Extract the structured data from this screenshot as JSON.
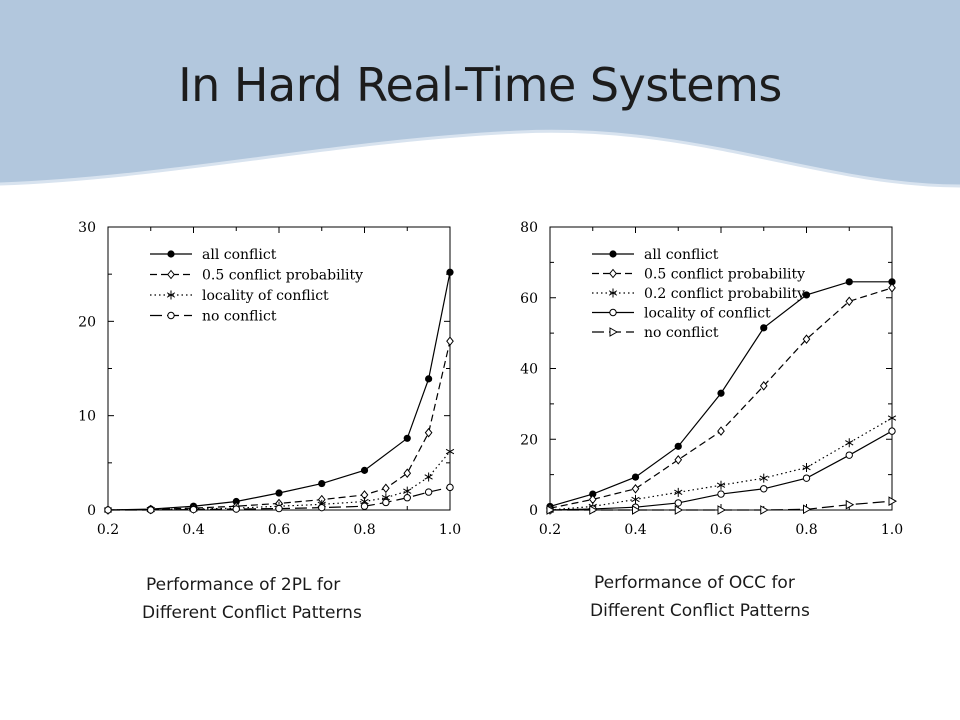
{
  "slide": {
    "title": "In Hard Real-Time Systems",
    "banner_color": "#b2c7dd"
  },
  "captions": {
    "left": [
      "Performance of 2PL for",
      "Different Conflict Patterns"
    ],
    "right": [
      "Performance of OCC for",
      "Different Conflict Patterns"
    ]
  },
  "chart_data": [
    {
      "type": "line",
      "title": "",
      "xlabel": "",
      "ylabel": "",
      "xlim": [
        0.2,
        1.0
      ],
      "ylim": [
        0,
        30
      ],
      "xticks": [
        0.2,
        0.4,
        0.6,
        0.8,
        1.0
      ],
      "xtick_labels": [
        "0.2",
        "0.4",
        "0.6",
        "0.8",
        "1.0"
      ],
      "yticks": [
        0,
        10,
        20,
        30
      ],
      "ytick_labels": [
        "0",
        "10",
        "20",
        "30"
      ],
      "grid": false,
      "legend": "top-left",
      "series": [
        {
          "name": "all conflict",
          "marker": "filled-circle",
          "dash": "solid",
          "x": [
            0.2,
            0.3,
            0.4,
            0.5,
            0.6,
            0.7,
            0.8,
            0.9,
            0.95,
            1.0
          ],
          "y": [
            0,
            0.1,
            0.4,
            0.9,
            1.8,
            2.8,
            4.2,
            7.6,
            13.9,
            25.2
          ]
        },
        {
          "name": "0.5 conflict probability",
          "marker": "diamond",
          "dash": "dashed",
          "x": [
            0.2,
            0.3,
            0.4,
            0.5,
            0.6,
            0.7,
            0.8,
            0.85,
            0.9,
            0.95,
            1.0
          ],
          "y": [
            0,
            0.05,
            0.2,
            0.4,
            0.7,
            1.1,
            1.6,
            2.3,
            3.9,
            8.2,
            17.9
          ]
        },
        {
          "name": "locality of conflict",
          "marker": "star",
          "dash": "dotted",
          "x": [
            0.2,
            0.3,
            0.4,
            0.5,
            0.6,
            0.7,
            0.8,
            0.85,
            0.9,
            0.95,
            1.0
          ],
          "y": [
            0,
            0.05,
            0.1,
            0.2,
            0.4,
            0.6,
            0.9,
            1.3,
            2.0,
            3.5,
            6.2
          ]
        },
        {
          "name": "no conflict",
          "marker": "open-circle",
          "dash": "long-dash",
          "x": [
            0.2,
            0.3,
            0.4,
            0.5,
            0.6,
            0.7,
            0.8,
            0.85,
            0.9,
            0.95,
            1.0
          ],
          "y": [
            0,
            0,
            0.05,
            0.1,
            0.15,
            0.25,
            0.4,
            0.8,
            1.3,
            1.9,
            2.4
          ]
        }
      ]
    },
    {
      "type": "line",
      "title": "",
      "xlabel": "",
      "ylabel": "",
      "xlim": [
        0.2,
        1.0
      ],
      "ylim": [
        0,
        80
      ],
      "xticks": [
        0.2,
        0.4,
        0.6,
        0.8,
        1.0
      ],
      "xtick_labels": [
        "0.2",
        "0.4",
        "0.6",
        "0.8",
        "1.0"
      ],
      "yticks": [
        0,
        20,
        40,
        60,
        80
      ],
      "ytick_labels": [
        "0",
        "20",
        "40",
        "60",
        "80"
      ],
      "grid": false,
      "legend": "top-left",
      "series": [
        {
          "name": "all conflict",
          "marker": "filled-circle",
          "dash": "solid",
          "x": [
            0.2,
            0.3,
            0.4,
            0.5,
            0.6,
            0.7,
            0.8,
            0.9,
            1.0
          ],
          "y": [
            1,
            4.5,
            9.3,
            18,
            33,
            51.5,
            60.8,
            64.5,
            64.5
          ]
        },
        {
          "name": "0.5 conflict probability",
          "marker": "diamond",
          "dash": "dashed",
          "x": [
            0.2,
            0.3,
            0.4,
            0.5,
            0.6,
            0.7,
            0.8,
            0.9,
            1.0
          ],
          "y": [
            0.5,
            3,
            6,
            14.2,
            22.3,
            35.1,
            48.3,
            59,
            62.8
          ]
        },
        {
          "name": "0.2 conflict probability",
          "marker": "star",
          "dash": "dotted",
          "x": [
            0.2,
            0.3,
            0.4,
            0.5,
            0.6,
            0.7,
            0.8,
            0.9,
            1.0
          ],
          "y": [
            0,
            1,
            3,
            5,
            7,
            9,
            12,
            19,
            26
          ]
        },
        {
          "name": "locality of conflict",
          "marker": "open-circle",
          "dash": "solid",
          "x": [
            0.2,
            0.3,
            0.4,
            0.5,
            0.6,
            0.7,
            0.8,
            0.9,
            1.0
          ],
          "y": [
            0,
            0.3,
            0.8,
            2,
            4.5,
            6,
            9,
            15.5,
            22.3
          ]
        },
        {
          "name": "no conflict",
          "marker": "triangle-right",
          "dash": "long-dash",
          "x": [
            0.2,
            0.3,
            0.4,
            0.5,
            0.6,
            0.7,
            0.8,
            0.9,
            1.0
          ],
          "y": [
            0,
            0,
            0,
            0,
            0,
            0,
            0.2,
            1.5,
            2.5
          ]
        }
      ]
    }
  ]
}
